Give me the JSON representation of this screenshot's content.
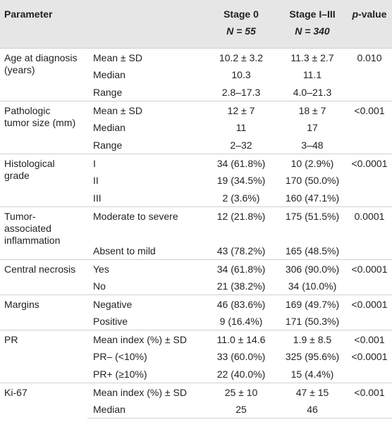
{
  "header": {
    "parameter": "Parameter",
    "stage0": "Stage 0",
    "stage0_n": "N = 55",
    "stage13": "Stage I–III",
    "stage13_n": "N = 340",
    "pvalue_p": "p",
    "pvalue_rest": "-value"
  },
  "groups": [
    {
      "name": [
        "Age at diagnosis",
        "(years)"
      ],
      "rows": [
        {
          "sub": "Mean ± SD",
          "s0": "10.2 ± 3.2",
          "s13": "11.3 ± 2.7",
          "p": "0.010"
        },
        {
          "sub": "Median",
          "s0": "10.3",
          "s13": "11.1",
          "p": ""
        },
        {
          "sub": "Range",
          "s0": "2.8–17.3",
          "s13": "4.0–21.3",
          "p": ""
        }
      ]
    },
    {
      "name": [
        "Pathologic",
        "tumor size (mm)"
      ],
      "rows": [
        {
          "sub": "Mean ± SD",
          "s0": "12 ± 7",
          "s13": "18 ± 7",
          "p": "<0.001"
        },
        {
          "sub": "Median",
          "s0": "11",
          "s13": "17",
          "p": ""
        },
        {
          "sub": "Range",
          "s0": "2–32",
          "s13": "3–48",
          "p": ""
        }
      ]
    },
    {
      "name": [
        "Histological",
        "grade"
      ],
      "rows": [
        {
          "sub": "I",
          "s0": "34 (61.8%)",
          "s13": "10 (2.9%)",
          "p": "<0.0001"
        },
        {
          "sub": "II",
          "s0": "19 (34.5%)",
          "s13": "170 (50.0%)",
          "p": ""
        },
        {
          "sub": "III",
          "s0": "2 (3.6%)",
          "s13": "160 (47.1%)",
          "p": ""
        }
      ]
    },
    {
      "name": [
        "Tumor-",
        "associated",
        "inflammation"
      ],
      "rows": [
        {
          "sub": "Moderate to severe",
          "s0": "12 (21.8%)",
          "s13": "175 (51.5%)",
          "p": "0.0001"
        },
        {
          "sub": "Absent to mild",
          "s0": "43 (78.2%)",
          "s13": "165 (48.5%)",
          "p": ""
        }
      ]
    },
    {
      "name": [
        "Central necrosis"
      ],
      "rows": [
        {
          "sub": "Yes",
          "s0": "34 (61.8%)",
          "s13": "306 (90.0%)",
          "p": "<0.0001"
        },
        {
          "sub": "No",
          "s0": "21 (38.2%)",
          "s13": "34 (10.0%)",
          "p": ""
        }
      ]
    },
    {
      "name": [
        "Margins"
      ],
      "rows": [
        {
          "sub": "Negative",
          "s0": "46 (83.6%)",
          "s13": "169 (49.7%)",
          "p": "<0.0001"
        },
        {
          "sub": "Positive",
          "s0": "9 (16.4%)",
          "s13": "171 (50.3%)",
          "p": ""
        }
      ]
    },
    {
      "name": [
        "PR"
      ],
      "rows": [
        {
          "sub": "Mean index (%) ± SD",
          "s0": "11.0 ± 14.6",
          "s13": "1.9 ± 8.5",
          "p": "<0.001"
        },
        {
          "sub": "PR– (<10%)",
          "s0": "33 (60.0%)",
          "s13": "325 (95.6%)",
          "p": "<0.0001"
        },
        {
          "sub": "PR+ (≥10%)",
          "s0": "22 (40.0%)",
          "s13": "15 (4.4%)",
          "p": ""
        }
      ]
    },
    {
      "name": [
        "Ki-67"
      ],
      "rows": [
        {
          "sub": "Mean index (%) ± SD",
          "s0": "25 ± 10",
          "s13": "47 ± 15",
          "p": "<0.001"
        },
        {
          "sub": "Median",
          "s0": "25",
          "s13": "46",
          "p": ""
        }
      ]
    }
  ]
}
